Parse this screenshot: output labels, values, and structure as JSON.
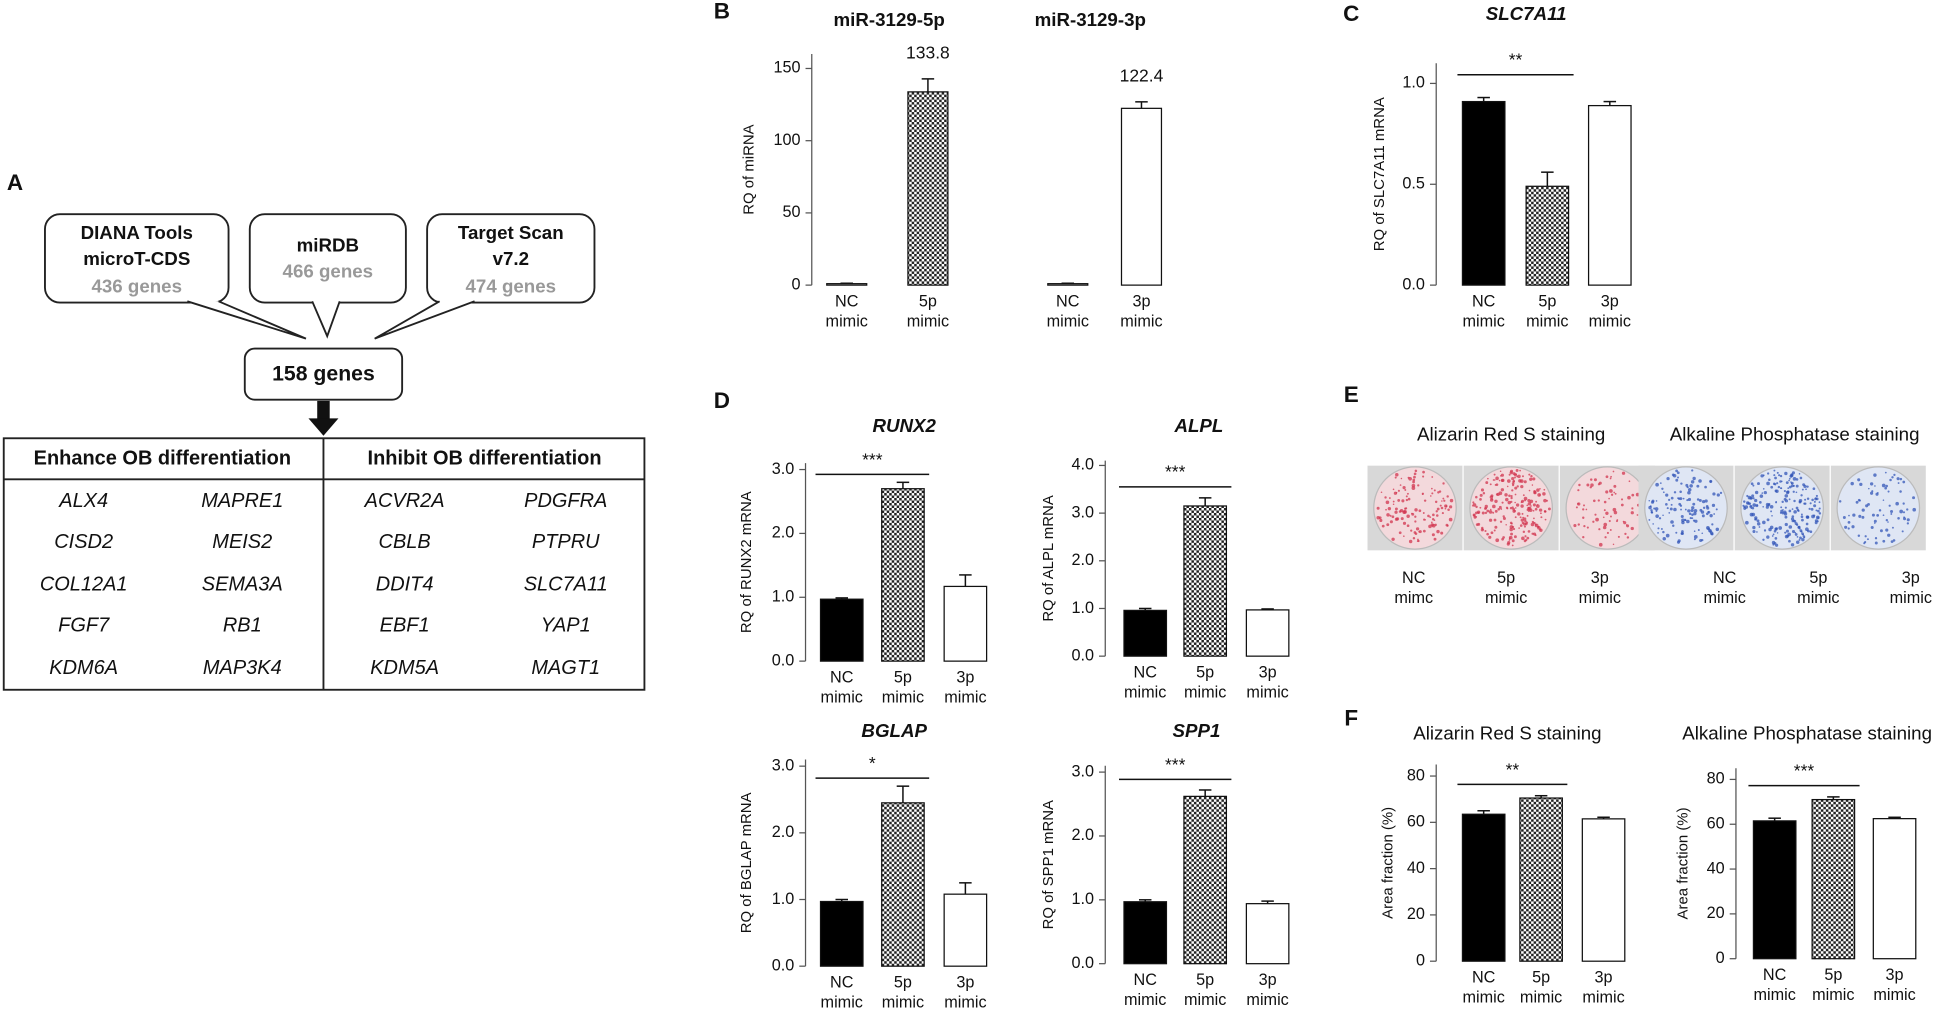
{
  "panel_labels": [
    "A",
    "B",
    "C",
    "D",
    "E",
    "F"
  ],
  "panel_a": {
    "sources": [
      {
        "lines": [
          "DIANA Tools",
          "microT-CDS"
        ],
        "count": "436 genes"
      },
      {
        "lines": [
          "miRDB"
        ],
        "count": "466 genes"
      },
      {
        "lines": [
          "Target Scan",
          "v7.2"
        ],
        "count": "474 genes"
      }
    ],
    "overlap": "158 genes",
    "table": {
      "headers": [
        "Enhance OB differentiation",
        "Inhibit OB differentiation"
      ],
      "rows": [
        [
          "ALX4",
          "MAPRE1",
          "ACVR2A",
          "PDGFRA"
        ],
        [
          "CISD2",
          "MEIS2",
          "CBLB",
          "PTPRU"
        ],
        [
          "COL12A1",
          "SEMA3A",
          "DDIT4",
          "SLC7A11"
        ],
        [
          "FGF7",
          "RB1",
          "EBF1",
          "YAP1"
        ],
        [
          "KDM6A",
          "MAP3K4",
          "KDM5A",
          "MAGT1"
        ]
      ]
    }
  },
  "panel_e": {
    "groups": [
      {
        "title": "Alizarin Red S staining",
        "labels": [
          "NC mimc",
          "5p mimic",
          "3p mimic"
        ]
      },
      {
        "title": "Alkaline Phosphatase staining",
        "labels": [
          "NC mimic",
          "5p mimic",
          "3p mimic"
        ]
      }
    ]
  },
  "chart_data": [
    {
      "type": "bar",
      "titles": [
        "miR-3129-5p",
        "miR-3129-3p"
      ],
      "ylabel": "RQ of miRNA",
      "categories": [
        "NC mimic",
        "5p mimic",
        "NC mimic",
        "3p mimic"
      ],
      "values": [
        1,
        133.8,
        1,
        122.4
      ],
      "errors": [
        0.3,
        9,
        0.3,
        4.5
      ],
      "value_labels": [
        null,
        "133.8",
        null,
        "122.4"
      ],
      "fills": [
        "#ffffff",
        "checker",
        "#ffffff",
        "#ffffff"
      ],
      "ylim": [
        0,
        160
      ],
      "yticks": [
        0,
        50,
        100,
        150
      ]
    },
    {
      "type": "bar",
      "title": "SLC7A11",
      "ylabel": "RQ of SLC7A11 mRNA",
      "categories": [
        "NC mimic",
        "5p mimic",
        "3p mimic"
      ],
      "values": [
        0.91,
        0.49,
        0.89
      ],
      "errors": [
        0.02,
        0.07,
        0.02
      ],
      "fills": [
        "#000000",
        "checker",
        "#ffffff"
      ],
      "ylim": [
        0,
        1.1
      ],
      "yticks": [
        {
          "value": 0,
          "label": "0.0"
        },
        {
          "value": 0.5,
          "label": "0.5"
        },
        {
          "value": 1,
          "label": "1.0"
        }
      ],
      "significance": {
        "label": "**",
        "between": [
          0,
          1
        ]
      }
    },
    {
      "type": "bar",
      "title": "RUNX2",
      "ylabel": "RQ of RUNX2 mRNA",
      "categories": [
        "NC mimic",
        "5p mimic",
        "3p mimic"
      ],
      "values": [
        0.97,
        2.7,
        1.17
      ],
      "errors": [
        0.02,
        0.1,
        0.18
      ],
      "fills": [
        "#000000",
        "checker",
        "#ffffff"
      ],
      "ylim": [
        0,
        3.1
      ],
      "yticks": [
        {
          "value": 0,
          "label": "0.0"
        },
        {
          "value": 1,
          "label": "1.0"
        },
        {
          "value": 2,
          "label": "2.0"
        },
        {
          "value": 3,
          "label": "3.0"
        }
      ],
      "significance": {
        "label": "***",
        "between": [
          0,
          1
        ]
      }
    },
    {
      "type": "bar",
      "title": "ALPL",
      "ylabel": "RQ of ALPL mRNA",
      "categories": [
        "NC mimic",
        "5p mimic",
        "3p mimic"
      ],
      "values": [
        0.96,
        3.15,
        0.97
      ],
      "errors": [
        0.04,
        0.17,
        0.02
      ],
      "fills": [
        "#000000",
        "checker",
        "#ffffff"
      ],
      "ylim": [
        0,
        4.1
      ],
      "yticks": [
        {
          "value": 0,
          "label": "0.0"
        },
        {
          "value": 1,
          "label": "1.0"
        },
        {
          "value": 2,
          "label": "2.0"
        },
        {
          "value": 3,
          "label": "3.0"
        },
        {
          "value": 4,
          "label": "4.0"
        }
      ],
      "significance": {
        "label": "***",
        "between": [
          0,
          1
        ]
      }
    },
    {
      "type": "bar",
      "title": "BGLAP",
      "ylabel": "RQ of BGLAP mRNA",
      "categories": [
        "NC mimic",
        "5p mimic",
        "3p mimic"
      ],
      "values": [
        0.97,
        2.45,
        1.08
      ],
      "errors": [
        0.03,
        0.25,
        0.17
      ],
      "fills": [
        "#000000",
        "checker",
        "#ffffff"
      ],
      "ylim": [
        0,
        3.1
      ],
      "yticks": [
        {
          "value": 0,
          "label": "0.0"
        },
        {
          "value": 1,
          "label": "1.0"
        },
        {
          "value": 2,
          "label": "2.0"
        },
        {
          "value": 3,
          "label": "3.0"
        }
      ],
      "significance": {
        "label": "*",
        "between": [
          0,
          1
        ]
      }
    },
    {
      "type": "bar",
      "title": "SPP1",
      "ylabel": "RQ of SPP1 mRNA",
      "categories": [
        "NC mimic",
        "5p mimic",
        "3p mimic"
      ],
      "values": [
        0.97,
        2.62,
        0.94
      ],
      "errors": [
        0.03,
        0.1,
        0.04
      ],
      "fills": [
        "#000000",
        "checker",
        "#ffffff"
      ],
      "ylim": [
        0,
        3.1
      ],
      "yticks": [
        {
          "value": 0,
          "label": "0.0"
        },
        {
          "value": 1,
          "label": "1.0"
        },
        {
          "value": 2,
          "label": "2.0"
        },
        {
          "value": 3,
          "label": "3.0"
        }
      ],
      "significance": {
        "label": "***",
        "between": [
          0,
          1
        ]
      }
    },
    {
      "type": "bar",
      "title": "Alizarin Red S staining",
      "ylabel": "Area fraction (%)",
      "categories": [
        "NC mimic",
        "5p mimic",
        "3p mimic"
      ],
      "values": [
        63.5,
        70.5,
        61.5
      ],
      "errors": [
        1.5,
        1,
        0.7
      ],
      "fills": [
        "#000000",
        "checker",
        "#ffffff"
      ],
      "ylim": [
        0,
        85
      ],
      "yticks": [
        0,
        20,
        40,
        60,
        80
      ],
      "significance": {
        "label": "**",
        "between": [
          0,
          1
        ]
      }
    },
    {
      "type": "bar",
      "title": "Alkaline Phosphatase staining",
      "ylabel": "Area fraction (%)",
      "categories": [
        "NC mimic",
        "5p mimic",
        "3p mimic"
      ],
      "values": [
        61.5,
        71,
        62.5
      ],
      "errors": [
        1.2,
        1.2,
        0.6
      ],
      "fills": [
        "#000000",
        "checker",
        "#ffffff"
      ],
      "ylim": [
        0,
        85
      ],
      "yticks": [
        0,
        20,
        40,
        60,
        80
      ],
      "significance": {
        "label": "***",
        "between": [
          0,
          1
        ]
      }
    }
  ]
}
